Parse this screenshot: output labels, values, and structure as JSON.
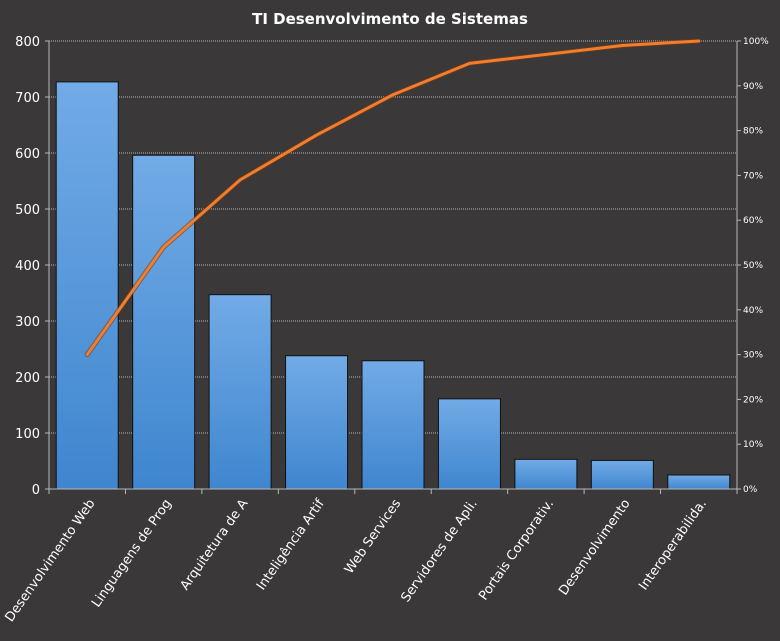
{
  "chart_data": {
    "type": "bar",
    "title": "TI Desenvolvimento  de Sistemas",
    "categories": [
      "Desenvolvimento Web",
      "Linguagens de Prog",
      "Arquitetura  de A",
      "Inteligência Artif",
      "Web Services",
      "Servidores de Apli.",
      "Portais Corporativ.",
      "Desenvolvimento",
      "Interoperabilida."
    ],
    "series": [
      {
        "type": "bar",
        "values": [
          727,
          596,
          347,
          238,
          229,
          161,
          53,
          51,
          25
        ]
      },
      {
        "type": "line",
        "axis": "right",
        "values": [
          30,
          54,
          69,
          79,
          88,
          95,
          97,
          99,
          100
        ]
      }
    ],
    "ylim": [
      0,
      800
    ],
    "yticks": [
      "0",
      "100",
      "200",
      "300",
      "400",
      "500",
      "600",
      "700",
      "800"
    ],
    "y2lim": [
      0,
      100
    ],
    "y2ticks": [
      "0%",
      "10%",
      "20%",
      "30%",
      "40%",
      "50%",
      "60%",
      "70%",
      "80%",
      "90%",
      "100%"
    ],
    "grid": true,
    "legend": "none",
    "colors": {
      "background": "#3a3838",
      "bar": "#4f93d8",
      "bar_light": "#6eaae6",
      "line": "#f07e2e",
      "text": "#ffffff",
      "grid": "#b8b8b8"
    }
  }
}
